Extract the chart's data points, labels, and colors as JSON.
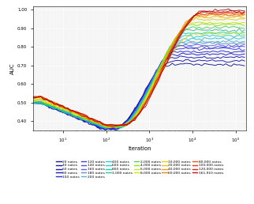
{
  "title": "",
  "xlabel": "Iteration",
  "ylabel": "AUC",
  "ylim": [
    0.35,
    1.02
  ],
  "yticks": [
    0.4,
    0.5,
    0.6,
    0.7,
    0.8,
    0.9,
    1.0
  ],
  "background_color": "#f5f5f5",
  "note_counts": [
    20,
    40,
    60,
    80,
    100,
    120,
    140,
    160,
    180,
    200,
    400,
    600,
    800,
    1000,
    2000,
    4000,
    6000,
    8000,
    10000,
    20000,
    40000,
    60000,
    80000,
    100000,
    120000,
    161910
  ],
  "legend_labels": [
    "20 notes",
    "40 notes",
    "60 notes",
    "80 notes",
    "100 notes",
    "120 notes",
    "140 notes",
    "160 notes",
    "180 notes",
    "200 notes",
    "400 notes",
    "600 notes",
    "800 notes",
    "1,000 notes",
    "2,000 notes",
    "4,000 notes",
    "6,000 notes",
    "8,000 notes",
    "10,000 notes",
    "20,000 notes",
    "40,000 notes",
    "60,000 notes",
    "80,000 notes",
    "100,000 notes",
    "120,000 notes",
    "161,910 notes"
  ],
  "colors": [
    "#00008B",
    "#00009F",
    "#0000B3",
    "#0000C8",
    "#1414D6",
    "#2828DD",
    "#3C3CE4",
    "#5050EB",
    "#4488CC",
    "#44AACC",
    "#22BBCC",
    "#00CED1",
    "#00CCAA",
    "#22BB88",
    "#44CC44",
    "#88DD00",
    "#AAEE00",
    "#CCDD00",
    "#DDCC00",
    "#EEB800",
    "#EE9900",
    "#EE7700",
    "#EE4400",
    "#DD2200",
    "#CC1100",
    "#AA0000"
  ],
  "final_aucs": [
    0.705,
    0.725,
    0.745,
    0.76,
    0.775,
    0.79,
    0.8,
    0.81,
    0.82,
    0.83,
    0.845,
    0.86,
    0.875,
    0.89,
    0.905,
    0.92,
    0.93,
    0.87,
    0.95,
    0.96,
    0.97,
    0.975,
    0.98,
    0.985,
    0.99,
    0.995
  ],
  "init_aucs": [
    0.5,
    0.5,
    0.5,
    0.5,
    0.5,
    0.5,
    0.5,
    0.5,
    0.5,
    0.5,
    0.5,
    0.5,
    0.5,
    0.5,
    0.505,
    0.51,
    0.515,
    0.515,
    0.52,
    0.525,
    0.53,
    0.53,
    0.53,
    0.53,
    0.53,
    0.53
  ]
}
